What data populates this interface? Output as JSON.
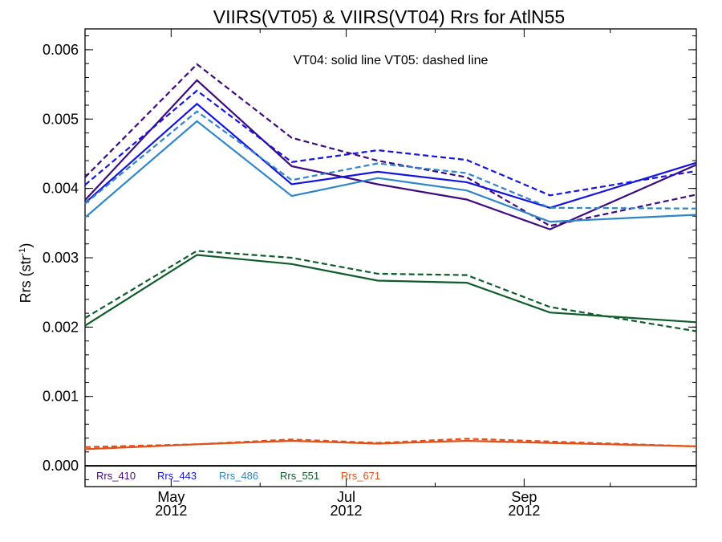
{
  "chart_data": {
    "type": "line",
    "title": "VIIRS(VT05) & VIIRS(VT04)  Rrs for AtlN55",
    "ylabel": "Rrs (str",
    "ylabel_superscript": "-1",
    "ylabel_suffix": ")",
    "annotation": "VT04: solid line   VT05: dashed line",
    "xlim": [
      "2012-04-01",
      "2012-10-31"
    ],
    "ylim": [
      -0.0003,
      0.0063
    ],
    "x_ticks": [
      {
        "month": "May",
        "year": "2012",
        "date": "2012-05-01"
      },
      {
        "month": "Jul",
        "year": "2012",
        "date": "2012-07-01"
      },
      {
        "month": "Sep",
        "year": "2012",
        "date": "2012-09-01"
      }
    ],
    "y_ticks": [
      "0.000",
      "0.001",
      "0.002",
      "0.003",
      "0.004",
      "0.005",
      "0.006"
    ],
    "y_tick_values": [
      0.0,
      0.001,
      0.002,
      0.003,
      0.004,
      0.005,
      0.006
    ],
    "x": [
      "2012-04-01",
      "2012-05-10",
      "2012-06-12",
      "2012-07-12",
      "2012-08-12",
      "2012-09-10",
      "2012-10-31"
    ],
    "line_styles": {
      "solid": "VT04",
      "dashed": "VT05"
    },
    "series": [
      {
        "name": "Rrs_410",
        "color": "#3d0a80",
        "vt04": [
          0.00383,
          0.00556,
          0.00432,
          0.00406,
          0.00384,
          0.00341,
          0.00434
        ],
        "vt05": [
          0.00416,
          0.00579,
          0.00473,
          0.0044,
          0.00416,
          0.00346,
          0.00391
        ]
      },
      {
        "name": "Rrs_443",
        "color": "#1414e0",
        "vt04": [
          0.00379,
          0.00522,
          0.00406,
          0.00424,
          0.00409,
          0.00372,
          0.00437
        ],
        "vt05": [
          0.00405,
          0.00541,
          0.00438,
          0.00455,
          0.00441,
          0.0039,
          0.00425
        ]
      },
      {
        "name": "Rrs_486",
        "color": "#2e86c8",
        "vt04": [
          0.00358,
          0.00497,
          0.00389,
          0.00415,
          0.00397,
          0.00352,
          0.00362
        ],
        "vt05": [
          0.00378,
          0.00511,
          0.00412,
          0.00436,
          0.00422,
          0.00372,
          0.00371
        ]
      },
      {
        "name": "Rrs_551",
        "color": "#0d5c2a",
        "vt04": [
          0.00202,
          0.00304,
          0.00291,
          0.00267,
          0.00264,
          0.00221,
          0.00207
        ],
        "vt05": [
          0.00213,
          0.0031,
          0.003,
          0.00277,
          0.00275,
          0.00229,
          0.00194
        ]
      },
      {
        "name": "Rrs_671",
        "color": "#e0501a",
        "vt04": [
          0.00024,
          0.00031,
          0.00036,
          0.00032,
          0.00036,
          0.00033,
          0.00028
        ],
        "vt05": [
          0.00027,
          0.00031,
          0.00038,
          0.00033,
          0.00039,
          0.00035,
          0.00028
        ]
      }
    ],
    "zero_line": true,
    "grid": false,
    "legend_placement": "bottom-left"
  }
}
